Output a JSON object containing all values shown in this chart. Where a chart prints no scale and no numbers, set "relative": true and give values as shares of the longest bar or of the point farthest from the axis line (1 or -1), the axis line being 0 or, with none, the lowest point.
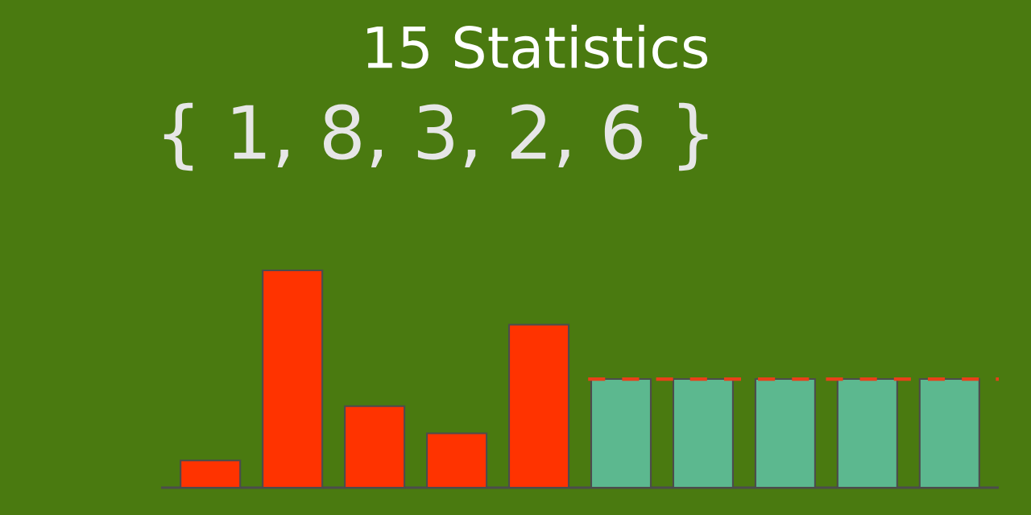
{
  "chart_data": {
    "type": "bar",
    "title": "15 Statistics",
    "annotations": [
      "{ 1, 8, 3, 2, 6 }"
    ],
    "categories": [
      null,
      null,
      null,
      null,
      null,
      null,
      null,
      null,
      null,
      null
    ],
    "values": [
      0.125,
      1,
      0.375,
      0.25,
      0.75,
      0.5,
      0.5,
      0.5,
      0.5,
      0.5
    ],
    "colors": [
      "#ff3300",
      "#ff3300",
      "#ff3300",
      "#ff3300",
      "#ff3300",
      "#5cb88f",
      "#5cb88f",
      "#5cb88f",
      "#5cb88f",
      "#5cb88f"
    ],
    "relative": true,
    "ref_lines": [
      {
        "axis": "y",
        "value": 0.5,
        "color": "#e8401a",
        "line_style": "dashed"
      }
    ]
  }
}
